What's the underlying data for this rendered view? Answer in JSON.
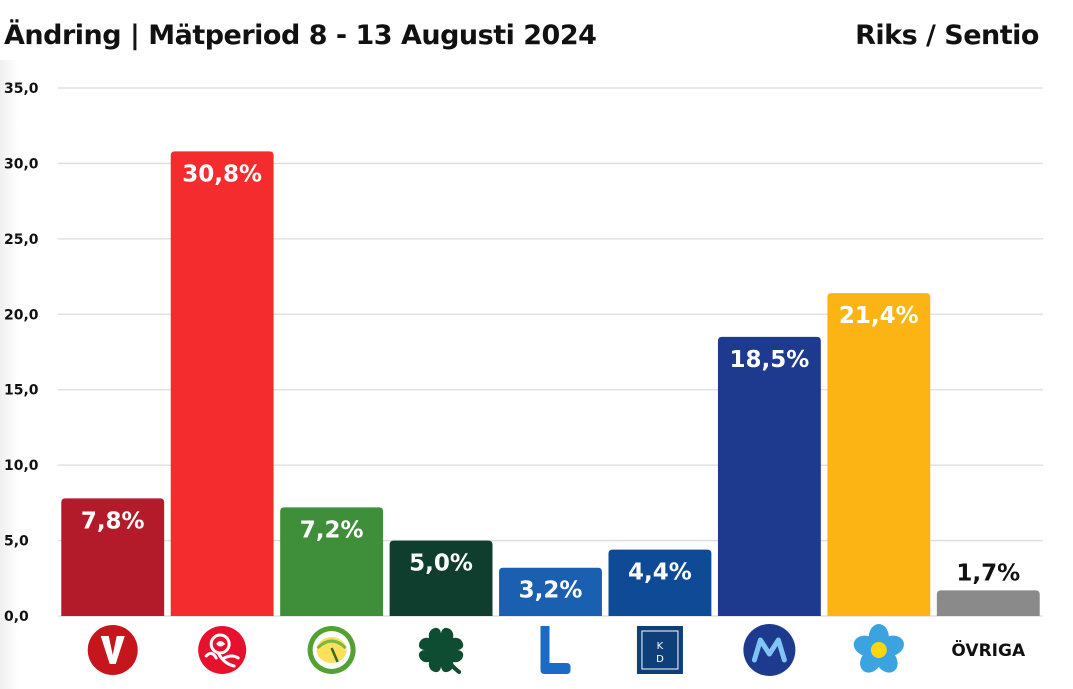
{
  "header": {
    "title": "Ändring | Mätperiod 8 - 13 Augusti 2024",
    "source": "Riks / Sentio"
  },
  "chart_data": {
    "type": "bar",
    "title": "Ändring | Mätperiod 8 - 13 Augusti 2024",
    "categories": [
      "V",
      "S",
      "MP",
      "C",
      "L",
      "KD",
      "M",
      "SD",
      "ÖVRIGA"
    ],
    "values": [
      7.8,
      30.8,
      7.2,
      5.0,
      3.2,
      4.4,
      18.5,
      21.4,
      1.7
    ],
    "value_labels": [
      "7,8%",
      "30,8%",
      "7,2%",
      "5,0%",
      "3,2%",
      "4,4%",
      "18,5%",
      "21,4%",
      "1,7%"
    ],
    "colors": [
      "#b31b2b",
      "#f42c2e",
      "#3f8e3a",
      "#0f3d2e",
      "#1a5fb0",
      "#0e4a96",
      "#1e3a8e",
      "#fbb414",
      "#8a8a8a"
    ],
    "label_colors": [
      "#ffffff",
      "#ffffff",
      "#ffffff",
      "#ffffff",
      "#ffffff",
      "#ffffff",
      "#ffffff",
      "#ffffff",
      "#111111"
    ],
    "x_icons": [
      "v-party-logo-icon",
      "s-rose-logo-icon",
      "mp-dandelion-logo-icon",
      "c-clover-logo-icon",
      "l-party-logo-icon",
      "kd-party-logo-icon",
      "m-party-logo-icon",
      "sd-flower-logo-icon",
      "ÖVRIGA"
    ],
    "yticks": [
      "0,0",
      "5,0",
      "10,0",
      "15,0",
      "20,0",
      "25,0",
      "30,0",
      "35,0"
    ],
    "ylim": [
      0,
      35
    ],
    "grid": true,
    "legend": "none"
  }
}
